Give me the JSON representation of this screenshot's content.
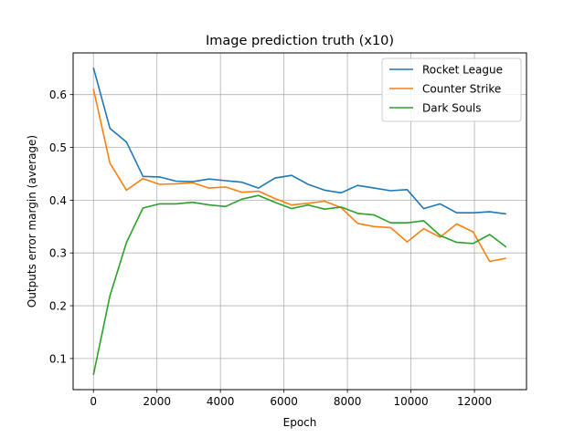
{
  "chart_data": {
    "type": "line",
    "title": "Image prediction truth (x10)",
    "xlabel": "Epoch",
    "ylabel": "Outputs error margin (average)",
    "xlim": [
      -640,
      13640
    ],
    "ylim": [
      0.041,
      0.679
    ],
    "xticks": [
      0,
      2000,
      4000,
      6000,
      8000,
      10000,
      12000
    ],
    "yticks": [
      0.1,
      0.2,
      0.3,
      0.4,
      0.5,
      0.6
    ],
    "grid": true,
    "legend_position": "top-right",
    "x": [
      0,
      520,
      1040,
      1560,
      2080,
      2600,
      3120,
      3640,
      4160,
      4680,
      5200,
      5720,
      6240,
      6760,
      7280,
      7800,
      8320,
      8840,
      9360,
      9880,
      10400,
      10920,
      11440,
      11960,
      12480,
      13000
    ],
    "series": [
      {
        "name": "Rocket League",
        "color": "#1f77b4",
        "values": [
          0.651,
          0.536,
          0.51,
          0.445,
          0.444,
          0.436,
          0.435,
          0.44,
          0.437,
          0.434,
          0.423,
          0.442,
          0.447,
          0.43,
          0.419,
          0.414,
          0.428,
          0.423,
          0.418,
          0.42,
          0.384,
          0.393,
          0.376,
          0.376,
          0.378,
          0.374
        ]
      },
      {
        "name": "Counter Strike",
        "color": "#ff7f0e",
        "values": [
          0.611,
          0.47,
          0.419,
          0.441,
          0.43,
          0.431,
          0.433,
          0.423,
          0.425,
          0.415,
          0.417,
          0.403,
          0.391,
          0.394,
          0.398,
          0.386,
          0.356,
          0.35,
          0.348,
          0.321,
          0.346,
          0.33,
          0.355,
          0.34,
          0.284,
          0.29
        ]
      },
      {
        "name": "Dark Souls",
        "color": "#2ca02c",
        "values": [
          0.069,
          0.219,
          0.32,
          0.385,
          0.393,
          0.393,
          0.396,
          0.391,
          0.388,
          0.402,
          0.409,
          0.396,
          0.384,
          0.391,
          0.383,
          0.387,
          0.375,
          0.372,
          0.357,
          0.357,
          0.361,
          0.333,
          0.32,
          0.318,
          0.335,
          0.311
        ]
      }
    ]
  }
}
